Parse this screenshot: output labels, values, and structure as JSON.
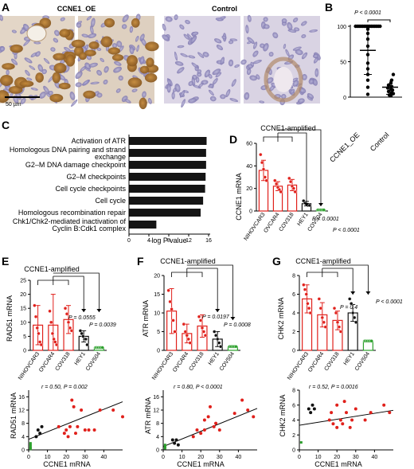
{
  "panelA": {
    "label": "A",
    "title_oe": "CCNE1_OE",
    "title_ctrl": "Control",
    "scalebar": "50 µm"
  },
  "panelB": {
    "label": "B",
    "pvalue": "P < 0.0001",
    "ticks": [
      "0",
      "50",
      "100"
    ],
    "categories": [
      "CCNE1_OE",
      "Control"
    ]
  },
  "panelC": {
    "label": "C",
    "xlabel": "–log P value",
    "ticks": [
      "0",
      "4",
      "8",
      "12",
      "16"
    ]
  },
  "panelD": {
    "label": "D",
    "group_label": "CCNE1-amplified",
    "ylabel": "CCNE1 mRNA",
    "ticks": [
      "0",
      "20",
      "40",
      "60"
    ],
    "p1": "P < 0.0001",
    "p2": "P < 0.0001"
  },
  "panelE": {
    "label": "E",
    "group_label": "CCNE1-amplified",
    "ylabel": "RAD51 mRNA",
    "ticks": [
      "0",
      "5",
      "10",
      "15",
      "20",
      "25"
    ],
    "p1": "P = 0.0555",
    "p2": "P = 0.0039",
    "scatter_stat": "r = 0.50, P = 0.002",
    "scatter_xlabel": "CCNE1 mRNA",
    "scatter_ylabel": "RAD51 mRNA",
    "scatter_yticks": [
      "0",
      "4",
      "8",
      "12",
      "16"
    ],
    "scatter_xticks": [
      "0",
      "10",
      "20",
      "30",
      "40"
    ]
  },
  "panelF": {
    "label": "F",
    "group_label": "CCNE1-amplified",
    "ylabel": "ATR mRNA",
    "ticks": [
      "0",
      "5",
      "10",
      "15",
      "20"
    ],
    "p1": "P = 0.0197",
    "p2": "P = 0.0008",
    "scatter_stat": "r = 0.80, P < 0.0001",
    "scatter_xlabel": "CCNE1 mRNA",
    "scatter_ylabel": "ATR mRNA",
    "scatter_yticks": [
      "0",
      "4",
      "8",
      "12",
      "16"
    ],
    "scatter_xticks": [
      "0",
      "10",
      "20",
      "30",
      "40"
    ]
  },
  "panelG": {
    "label": "G",
    "group_label": "CCNE1-amplified",
    "ylabel": "CHK2 mRNA",
    "ticks": [
      "0",
      "2",
      "4",
      "6",
      "8"
    ],
    "p1": "P = 0.4",
    "p2": "P < 0.0001",
    "scatter_stat": "r = 0.52, P = 0.0016",
    "scatter_xlabel": "CCNE1 mRNA",
    "scatter_ylabel": "CHK2 mRNA",
    "scatter_yticks": [
      "0",
      "2",
      "4",
      "6",
      "8"
    ],
    "scatter_xticks": [
      "0",
      "10",
      "20",
      "30",
      "40"
    ]
  },
  "cell_lines": [
    "NIHOVCAR3",
    "OVCAR4",
    "COV318",
    "HEY1",
    "COV504"
  ],
  "colors": {
    "amplified": "#e0201b",
    "hey1": "#111111",
    "cov504": "#2ca02c",
    "bar_c": "#151515"
  },
  "chart_data": [
    {
      "id": "B",
      "type": "scatter",
      "categories": [
        "CCNE1_OE",
        "Control"
      ],
      "ylim": [
        0,
        100
      ],
      "means": [
        66,
        14
      ],
      "sd": [
        34,
        10
      ],
      "points": [
        [
          100,
          100,
          100,
          100,
          100,
          100,
          100,
          100,
          100,
          100,
          100,
          100,
          100,
          100,
          100,
          96,
          90,
          82,
          72,
          60,
          48,
          40,
          32,
          24,
          14,
          4
        ],
        [
          32,
          24,
          20,
          17,
          15,
          13,
          11,
          10,
          8,
          6,
          5,
          3,
          2
        ]
      ]
    },
    {
      "id": "C",
      "type": "bar",
      "orientation": "horizontal",
      "categories": [
        "Activation of ATR",
        "Homologous DNA pairing and strand exchange",
        "G2–M DNA damage checkpoint",
        "G2–M checkpoints",
        "Cell cycle checkpoints",
        "Cell cycle",
        "Homologous recombination repair",
        "Chk1/Chk2-mediated inactivation of Cyclin B:Cdk1 complex"
      ],
      "values": [
        15.6,
        15.5,
        15.5,
        15.4,
        15.3,
        14.9,
        14.4,
        5.5
      ],
      "xlim": [
        0,
        16
      ],
      "xlabel": "–log P value"
    },
    {
      "id": "D",
      "type": "bar",
      "categories": [
        "NIHOVCAR3",
        "OVCAR4",
        "COV318",
        "HEY1",
        "COV504"
      ],
      "values": [
        36,
        22,
        23,
        6.5,
        1
      ],
      "sd": [
        9,
        4,
        5,
        2,
        0.3
      ],
      "points": [
        [
          50,
          43,
          37,
          30,
          27
        ],
        [
          27,
          24,
          21,
          19,
          17
        ],
        [
          29,
          26,
          22,
          20,
          17
        ],
        [
          9,
          7,
          6,
          5,
          5
        ],
        [
          1,
          1,
          1,
          1,
          1
        ]
      ],
      "ylim": [
        0,
        60
      ],
      "ylabel": "CCNE1 mRNA"
    },
    {
      "id": "E",
      "type": "bar",
      "categories": [
        "NIHOVCAR3",
        "OVCAR4",
        "COV318",
        "HEY1",
        "COV504"
      ],
      "values": [
        9,
        9,
        11,
        5,
        1
      ],
      "sd": [
        7,
        11,
        5,
        2,
        0.4
      ],
      "points": [
        [
          16,
          12,
          8,
          6,
          3,
          2
        ],
        [
          14,
          10,
          6,
          4,
          3,
          2
        ],
        [
          15,
          13,
          10,
          8,
          7
        ],
        [
          7,
          6,
          5,
          4,
          4,
          2
        ],
        [
          1,
          1,
          1,
          1,
          1,
          1
        ]
      ],
      "ylim": [
        0,
        25
      ],
      "ylabel": "RAD51 mRNA"
    },
    {
      "id": "E-scatter",
      "type": "scatter",
      "xlabel": "CCNE1 mRNA",
      "ylabel": "RAD51 mRNA",
      "xlim": [
        0,
        50
      ],
      "ylim": [
        0,
        18
      ],
      "points_amplified": [
        [
          16,
          7
        ],
        [
          19,
          5
        ],
        [
          20,
          6
        ],
        [
          21,
          4
        ],
        [
          22,
          7
        ],
        [
          23,
          15
        ],
        [
          24,
          13
        ],
        [
          25,
          5
        ],
        [
          26,
          7
        ],
        [
          28,
          12
        ],
        [
          30,
          6
        ],
        [
          32,
          6
        ],
        [
          35,
          6
        ],
        [
          38,
          12
        ],
        [
          45,
          12
        ],
        [
          50,
          10
        ]
      ],
      "points_hey1": [
        [
          4,
          4
        ],
        [
          5,
          6
        ],
        [
          6,
          5
        ],
        [
          7,
          7
        ]
      ],
      "points_cov504": [
        [
          1,
          0.3
        ],
        [
          1,
          0.6
        ],
        [
          1,
          1
        ],
        [
          1,
          1.5
        ],
        [
          1,
          2
        ]
      ],
      "fit": [
        [
          0,
          3.2
        ],
        [
          50,
          14.5
        ]
      ]
    },
    {
      "id": "F",
      "type": "bar",
      "categories": [
        "NIHOVCAR3",
        "OVCAR4",
        "COV318",
        "HEY1",
        "COV504"
      ],
      "values": [
        10.5,
        4.5,
        6.5,
        3,
        1
      ],
      "sd": [
        6,
        2.5,
        3,
        2,
        0.3
      ],
      "points": [
        [
          16,
          13,
          11,
          8,
          5
        ],
        [
          7,
          5,
          4,
          3,
          2
        ],
        [
          9,
          8,
          6,
          5,
          4
        ],
        [
          5,
          4,
          3,
          2,
          1
        ],
        [
          1,
          1,
          1,
          1,
          1
        ]
      ],
      "ylim": [
        0,
        20
      ],
      "ylabel": "ATR mRNA"
    },
    {
      "id": "F-scatter",
      "type": "scatter",
      "xlabel": "CCNE1 mRNA",
      "ylabel": "ATR mRNA",
      "xlim": [
        0,
        50
      ],
      "ylim": [
        0,
        18
      ],
      "points_amplified": [
        [
          16,
          4
        ],
        [
          18,
          6
        ],
        [
          20,
          5
        ],
        [
          22,
          6
        ],
        [
          22,
          9
        ],
        [
          24,
          10
        ],
        [
          25,
          13
        ],
        [
          27,
          7
        ],
        [
          28,
          8
        ],
        [
          30,
          6
        ],
        [
          38,
          11
        ],
        [
          42,
          15
        ],
        [
          45,
          12
        ],
        [
          48,
          10
        ]
      ],
      "points_hey1": [
        [
          5,
          3
        ],
        [
          6,
          2
        ],
        [
          7,
          3
        ],
        [
          8,
          1.5
        ]
      ],
      "points_cov504": [
        [
          1,
          0.5
        ],
        [
          1,
          0.8
        ],
        [
          1,
          1
        ],
        [
          1,
          1.2
        ],
        [
          1,
          1.5
        ]
      ],
      "fit": [
        [
          0,
          1
        ],
        [
          50,
          12.5
        ]
      ]
    },
    {
      "id": "G",
      "type": "bar",
      "categories": [
        "NIHOVCAR3",
        "OVCAR4",
        "COV318",
        "HEY1",
        "COV504"
      ],
      "values": [
        5.5,
        3.8,
        3.2,
        4,
        1
      ],
      "sd": [
        1.5,
        1.3,
        1,
        0.9,
        0.1
      ],
      "points": [
        [
          7,
          6.5,
          6,
          5,
          4.5,
          4
        ],
        [
          5.5,
          4.5,
          3.5,
          3,
          2.5
        ],
        [
          4.5,
          4,
          3,
          2.5,
          2
        ],
        [
          5.5,
          5,
          4,
          3.5,
          3
        ],
        [
          1,
          1,
          1,
          1,
          1,
          1
        ]
      ],
      "ylim": [
        0,
        8
      ],
      "ylabel": "CHK2 mRNA"
    },
    {
      "id": "G-scatter",
      "type": "scatter",
      "xlabel": "CCNE1 mRNA",
      "ylabel": "CHK2 mRNA",
      "xlim": [
        0,
        50
      ],
      "ylim": [
        0,
        8
      ],
      "points_amplified": [
        [
          16,
          4
        ],
        [
          17,
          5
        ],
        [
          18,
          3.5
        ],
        [
          20,
          6
        ],
        [
          20,
          3
        ],
        [
          22,
          4
        ],
        [
          23,
          3.5
        ],
        [
          24,
          6.5
        ],
        [
          25,
          5
        ],
        [
          27,
          3
        ],
        [
          28,
          4
        ],
        [
          30,
          5.5
        ],
        [
          35,
          4
        ],
        [
          38,
          5
        ],
        [
          45,
          6
        ],
        [
          48,
          5
        ]
      ],
      "points_hey1": [
        [
          5,
          5.5
        ],
        [
          6,
          5
        ],
        [
          7,
          6
        ],
        [
          8,
          5.5
        ]
      ],
      "points_cov504": [
        [
          1,
          1
        ]
      ],
      "fit": [
        [
          0,
          3.3
        ],
        [
          50,
          5.3
        ]
      ]
    }
  ]
}
